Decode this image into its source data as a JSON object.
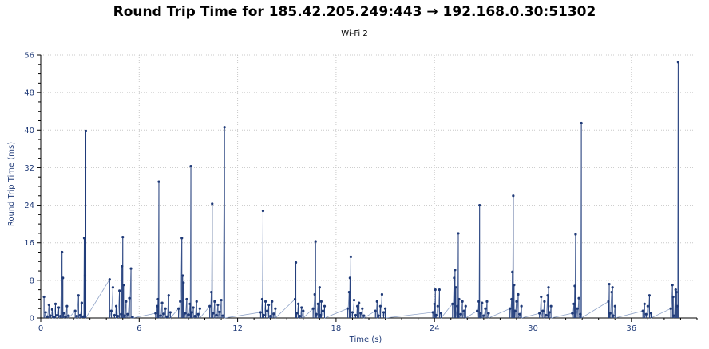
{
  "chart_data": {
    "type": "line",
    "title": "Round Trip Time for 185.42.205.249:443 → 192.168.0.30:51302",
    "subtitle": "Wi-Fi 2",
    "xlabel": "Time (s)",
    "ylabel": "Round Trip Time (ms)",
    "xlim": [
      0,
      40
    ],
    "ylim": [
      0,
      56
    ],
    "xticks": [
      0,
      6,
      12,
      18,
      24,
      30,
      36
    ],
    "yticks": [
      0,
      8,
      16,
      24,
      32,
      40,
      48,
      56
    ],
    "grid": true,
    "colors": {
      "series": "#1f3a78",
      "line": "#8fa3c8",
      "axis": "#000000",
      "grid": "#c8c8c8"
    },
    "series": [
      {
        "points": [
          [
            0.2,
            4.5
          ],
          [
            0.3,
            1.2
          ],
          [
            0.4,
            0.3
          ],
          [
            0.5,
            2.8
          ],
          [
            0.6,
            0.5
          ],
          [
            0.7,
            1.8
          ],
          [
            0.8,
            0.2
          ],
          [
            0.9,
            3.0
          ],
          [
            1.0,
            0.6
          ],
          [
            1.1,
            2.2
          ],
          [
            1.2,
            0.4
          ],
          [
            1.3,
            14.0
          ],
          [
            1.35,
            8.5
          ],
          [
            1.4,
            1.0
          ],
          [
            1.5,
            0.3
          ],
          [
            1.6,
            2.5
          ],
          [
            1.7,
            0.5
          ],
          [
            2.1,
            1.5
          ],
          [
            2.2,
            0.4
          ],
          [
            2.3,
            4.8
          ],
          [
            2.4,
            0.6
          ],
          [
            2.5,
            3.2
          ],
          [
            2.6,
            0.3
          ],
          [
            2.65,
            17.0
          ],
          [
            2.7,
            9.0
          ],
          [
            2.75,
            39.8
          ],
          [
            4.2,
            8.2
          ],
          [
            4.3,
            1.5
          ],
          [
            4.4,
            6.5
          ],
          [
            4.5,
            0.6
          ],
          [
            4.6,
            2.5
          ],
          [
            4.7,
            0.4
          ],
          [
            4.8,
            5.8
          ],
          [
            4.9,
            0.8
          ],
          [
            4.95,
            11.0
          ],
          [
            5.0,
            17.2
          ],
          [
            5.05,
            7.0
          ],
          [
            5.1,
            0.5
          ],
          [
            5.2,
            3.5
          ],
          [
            5.3,
            0.8
          ],
          [
            5.4,
            4.2
          ],
          [
            5.5,
            10.5
          ],
          [
            5.6,
            0.2
          ],
          [
            7.0,
            1.0
          ],
          [
            7.1,
            2.5
          ],
          [
            7.15,
            4.0
          ],
          [
            7.2,
            29.0
          ],
          [
            7.3,
            0.5
          ],
          [
            7.4,
            3.2
          ],
          [
            7.5,
            0.9
          ],
          [
            7.6,
            2.0
          ],
          [
            7.7,
            0.3
          ],
          [
            7.8,
            4.8
          ],
          [
            7.9,
            1.2
          ],
          [
            8.4,
            2.0
          ],
          [
            8.5,
            3.5
          ],
          [
            8.6,
            17.0
          ],
          [
            8.65,
            9.0
          ],
          [
            8.7,
            7.5
          ],
          [
            8.8,
            1.0
          ],
          [
            8.9,
            4.0
          ],
          [
            9.0,
            0.7
          ],
          [
            9.1,
            3.0
          ],
          [
            9.15,
            32.3
          ],
          [
            9.2,
            1.2
          ],
          [
            9.3,
            2.2
          ],
          [
            9.4,
            0.4
          ],
          [
            9.5,
            3.5
          ],
          [
            9.6,
            0.8
          ],
          [
            9.7,
            2.0
          ],
          [
            10.3,
            2.5
          ],
          [
            10.4,
            5.5
          ],
          [
            10.45,
            24.3
          ],
          [
            10.5,
            1.0
          ],
          [
            10.6,
            3.5
          ],
          [
            10.7,
            0.6
          ],
          [
            10.8,
            2.8
          ],
          [
            10.9,
            1.3
          ],
          [
            11.0,
            3.8
          ],
          [
            11.1,
            0.5
          ],
          [
            11.2,
            40.6
          ],
          [
            13.4,
            1.2
          ],
          [
            13.5,
            4.0
          ],
          [
            13.55,
            22.8
          ],
          [
            13.6,
            0.6
          ],
          [
            13.7,
            3.5
          ],
          [
            13.8,
            1.5
          ],
          [
            13.9,
            2.8
          ],
          [
            14.0,
            0.4
          ],
          [
            14.1,
            3.5
          ],
          [
            14.2,
            0.9
          ],
          [
            14.3,
            2.0
          ],
          [
            15.5,
            4.0
          ],
          [
            15.55,
            11.8
          ],
          [
            15.6,
            1.0
          ],
          [
            15.7,
            3.0
          ],
          [
            15.8,
            0.4
          ],
          [
            15.9,
            2.2
          ],
          [
            16.0,
            1.5
          ],
          [
            16.6,
            2.0
          ],
          [
            16.7,
            5.0
          ],
          [
            16.75,
            16.3
          ],
          [
            16.8,
            0.8
          ],
          [
            16.9,
            3.0
          ],
          [
            17.0,
            6.5
          ],
          [
            17.05,
            0.6
          ],
          [
            17.1,
            3.5
          ],
          [
            17.2,
            1.5
          ],
          [
            17.3,
            2.5
          ],
          [
            18.7,
            2.0
          ],
          [
            18.8,
            5.5
          ],
          [
            18.85,
            8.5
          ],
          [
            18.9,
            13.0
          ],
          [
            19.0,
            1.2
          ],
          [
            19.1,
            3.8
          ],
          [
            19.2,
            0.6
          ],
          [
            19.3,
            2.5
          ],
          [
            19.4,
            3.2
          ],
          [
            19.5,
            1.0
          ],
          [
            19.6,
            2.0
          ],
          [
            19.7,
            0.5
          ],
          [
            20.4,
            1.5
          ],
          [
            20.5,
            3.5
          ],
          [
            20.6,
            0.5
          ],
          [
            20.7,
            2.5
          ],
          [
            20.8,
            5.0
          ],
          [
            20.9,
            1.2
          ],
          [
            21.0,
            2.0
          ],
          [
            23.9,
            1.2
          ],
          [
            24.0,
            3.0
          ],
          [
            24.05,
            6.0
          ],
          [
            24.1,
            0.6
          ],
          [
            24.2,
            2.5
          ],
          [
            24.3,
            6.0
          ],
          [
            24.4,
            1.0
          ],
          [
            25.1,
            3.0
          ],
          [
            25.2,
            8.5
          ],
          [
            25.25,
            10.2
          ],
          [
            25.3,
            6.5
          ],
          [
            25.4,
            2.5
          ],
          [
            25.45,
            18.0
          ],
          [
            25.5,
            4.0
          ],
          [
            25.6,
            0.8
          ],
          [
            25.7,
            3.5
          ],
          [
            25.8,
            1.5
          ],
          [
            25.9,
            2.5
          ],
          [
            26.6,
            1.5
          ],
          [
            26.7,
            3.5
          ],
          [
            26.75,
            24.0
          ],
          [
            26.8,
            1.0
          ],
          [
            26.9,
            3.2
          ],
          [
            27.0,
            0.5
          ],
          [
            27.1,
            2.0
          ],
          [
            27.2,
            3.5
          ],
          [
            27.3,
            1.0
          ],
          [
            28.6,
            2.0
          ],
          [
            28.7,
            4.0
          ],
          [
            28.75,
            9.8
          ],
          [
            28.8,
            26.0
          ],
          [
            28.85,
            7.0
          ],
          [
            28.9,
            1.5
          ],
          [
            29.0,
            3.5
          ],
          [
            29.1,
            5.0
          ],
          [
            29.2,
            0.8
          ],
          [
            29.3,
            2.5
          ],
          [
            30.4,
            1.0
          ],
          [
            30.5,
            4.5
          ],
          [
            30.6,
            1.5
          ],
          [
            30.7,
            3.5
          ],
          [
            30.8,
            0.6
          ],
          [
            30.9,
            4.8
          ],
          [
            30.95,
            6.5
          ],
          [
            31.0,
            1.2
          ],
          [
            31.1,
            2.5
          ],
          [
            32.4,
            1.0
          ],
          [
            32.5,
            3.0
          ],
          [
            32.55,
            6.8
          ],
          [
            32.6,
            17.8
          ],
          [
            32.7,
            2.0
          ],
          [
            32.8,
            4.2
          ],
          [
            32.9,
            0.8
          ],
          [
            32.95,
            41.5
          ],
          [
            34.6,
            3.5
          ],
          [
            34.65,
            7.2
          ],
          [
            34.7,
            1.0
          ],
          [
            34.8,
            5.5
          ],
          [
            34.85,
            6.5
          ],
          [
            34.9,
            0.5
          ],
          [
            35.0,
            2.5
          ],
          [
            36.7,
            1.5
          ],
          [
            36.8,
            3.0
          ],
          [
            36.9,
            0.8
          ],
          [
            37.0,
            2.5
          ],
          [
            37.1,
            4.8
          ],
          [
            37.2,
            1.0
          ],
          [
            38.4,
            2.0
          ],
          [
            38.5,
            7.0
          ],
          [
            38.55,
            4.5
          ],
          [
            38.6,
            0.5
          ],
          [
            38.7,
            6.0
          ],
          [
            38.75,
            5.5
          ],
          [
            38.8,
            2.5
          ],
          [
            38.85,
            54.5
          ]
        ]
      }
    ]
  }
}
